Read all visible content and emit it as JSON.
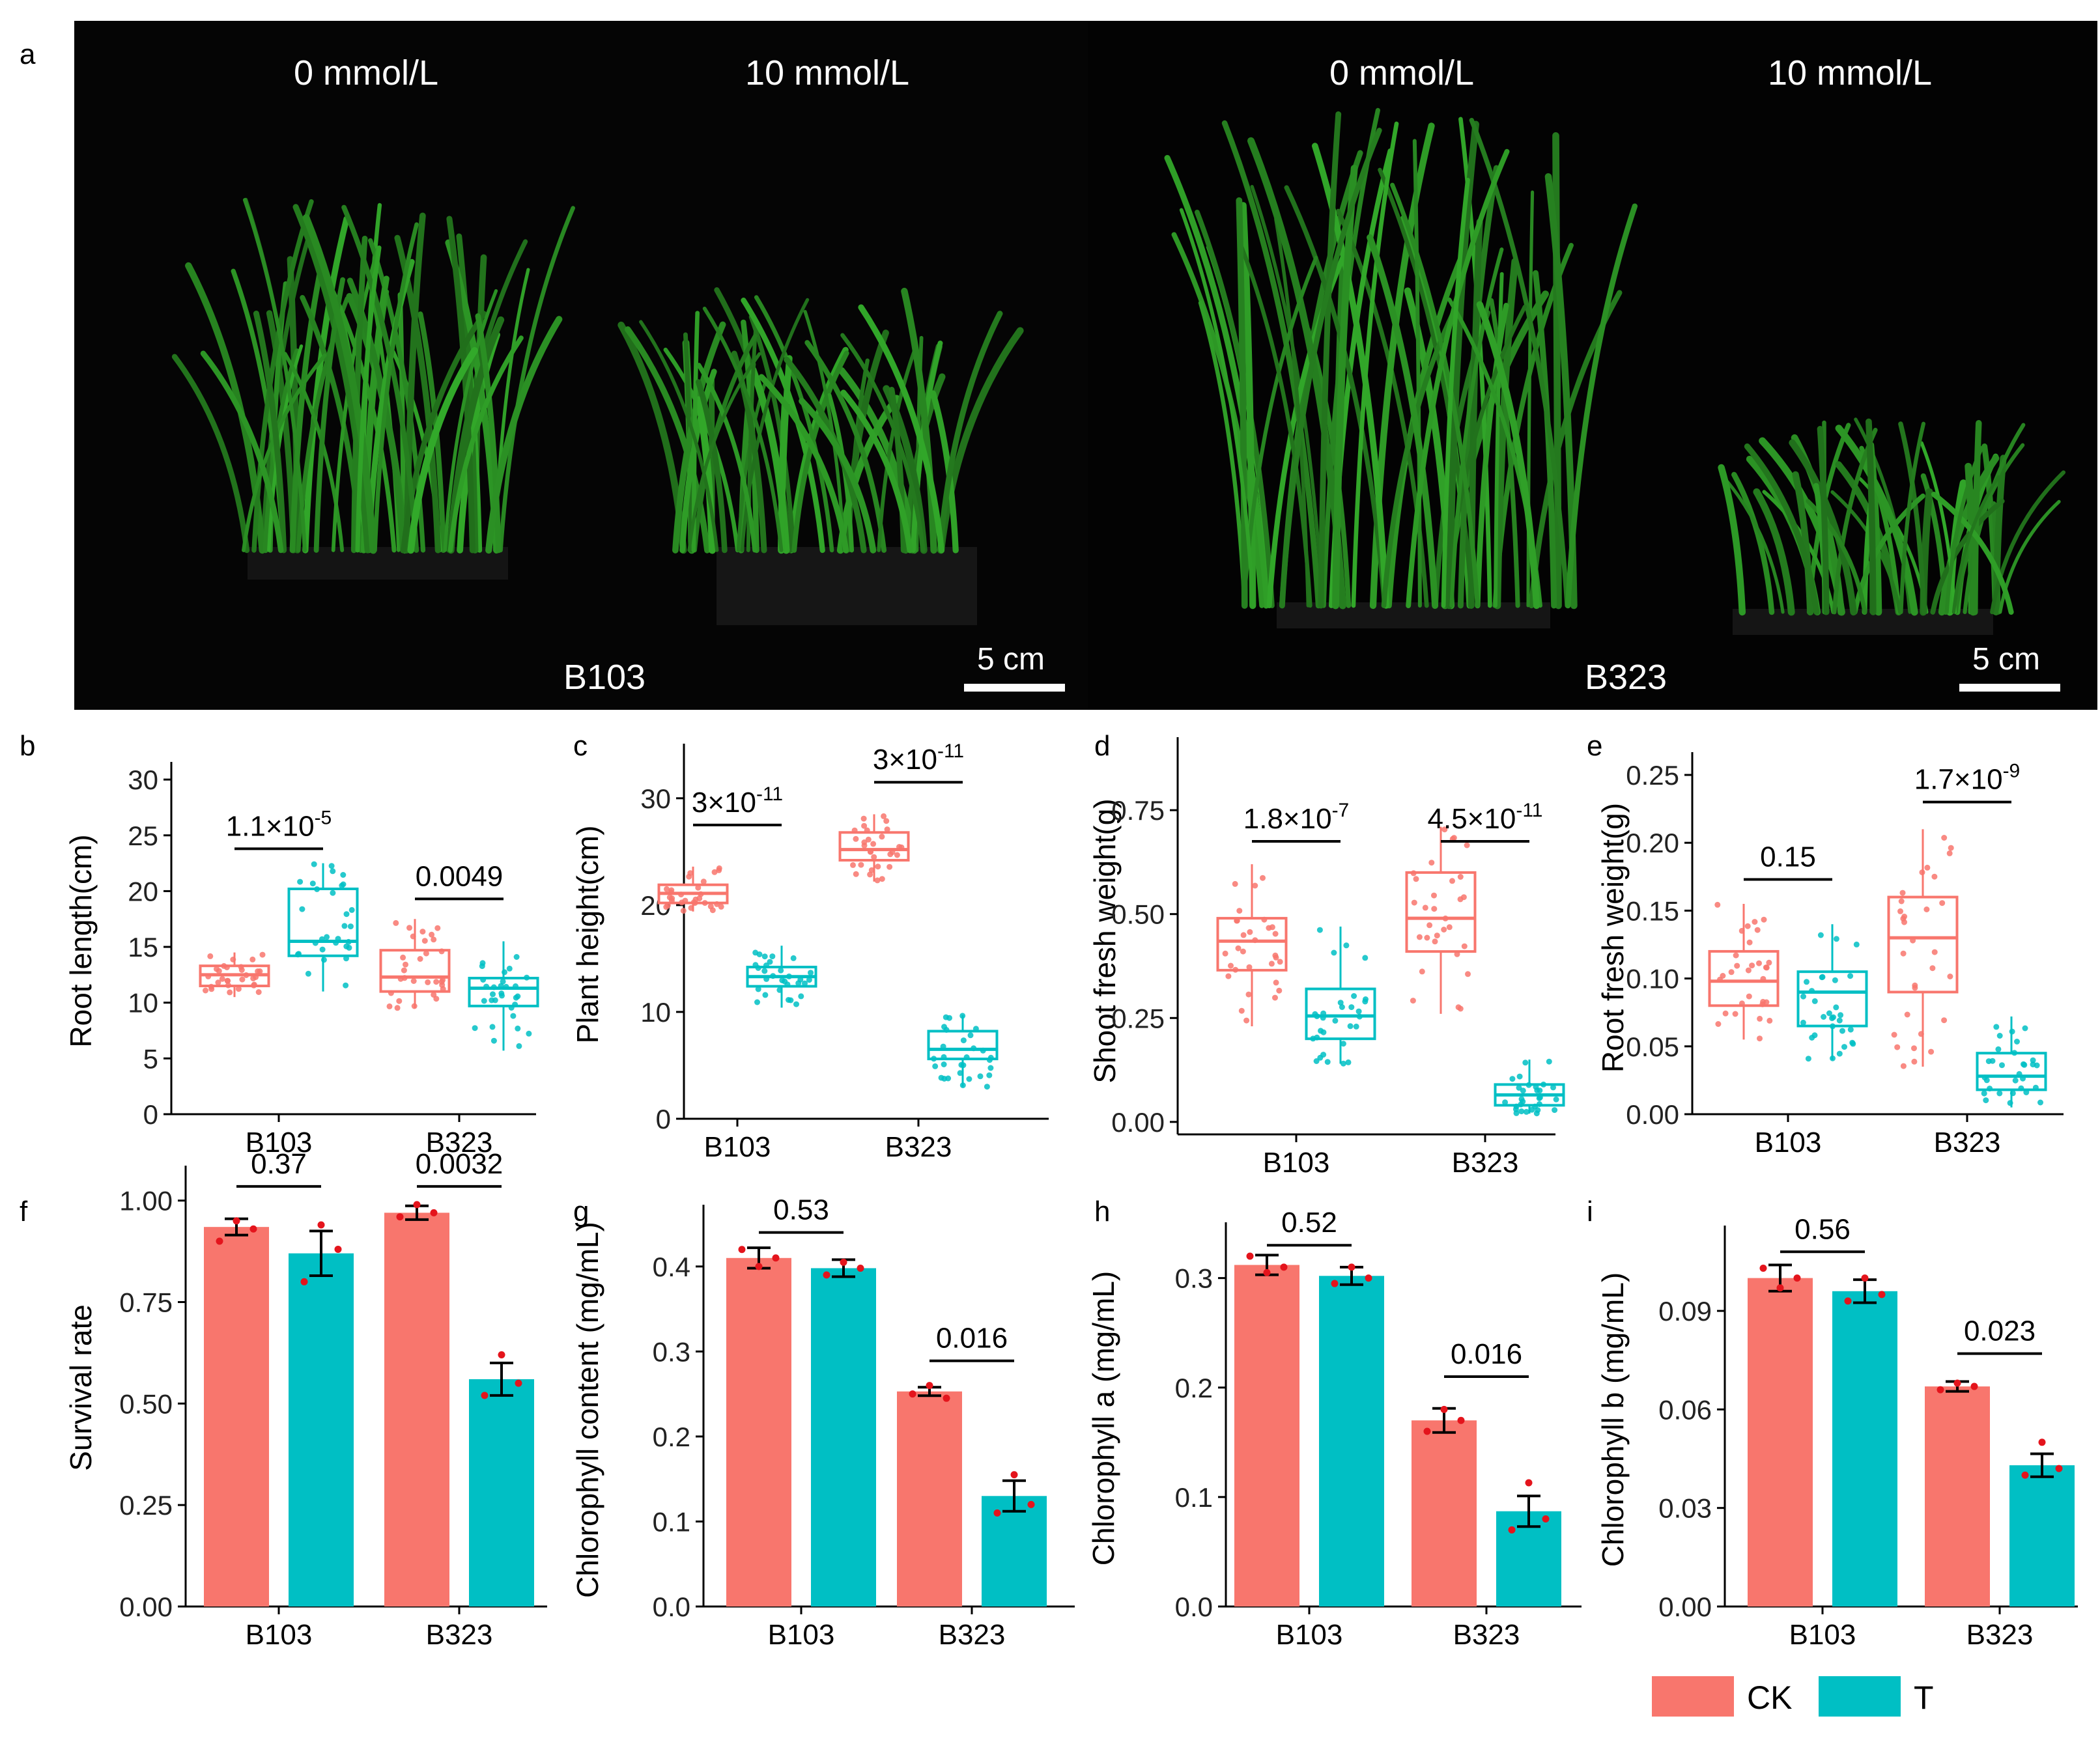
{
  "panel_a": {
    "letter": "a",
    "groups": [
      {
        "genotype": "B103",
        "conditions": [
          "0 mmol/L",
          "10 mmol/L"
        ],
        "scale_bar": "5 cm"
      },
      {
        "genotype": "B323",
        "conditions": [
          "0 mmol/L",
          "10 mmol/L"
        ],
        "scale_bar": "5 cm"
      }
    ]
  },
  "legend": {
    "entries": [
      {
        "label": "CK",
        "color": "#f8766d"
      },
      {
        "label": "T",
        "color": "#00bfc4"
      }
    ]
  },
  "colors": {
    "CK": "#f8766d",
    "T": "#00bfc4",
    "photo_bg": "#040404",
    "plant": "#2f8f2a",
    "point_bar": "#e4141c"
  },
  "chart_data": [
    {
      "id": "b",
      "letter": "b",
      "type": "box",
      "ylabel": "Root length(cm)",
      "ylim": [
        0,
        31
      ],
      "yticks": [
        0,
        5,
        10,
        15,
        20,
        25,
        30
      ],
      "ytick_labels": [
        "0",
        "5",
        "10",
        "15",
        "20",
        "25",
        "30"
      ],
      "categories": [
        "B103",
        "B323"
      ],
      "series": [
        {
          "name": "CK",
          "boxes": [
            {
              "q1": 11.5,
              "median": 12.5,
              "q3": 13.3,
              "whisker_low": 10.5,
              "whisker_high": 14.5
            },
            {
              "q1": 11,
              "median": 12.3,
              "q3": 14.7,
              "whisker_low": 9.5,
              "whisker_high": 17.5
            }
          ]
        },
        {
          "name": "T",
          "boxes": [
            {
              "q1": 14.2,
              "median": 15.5,
              "q3": 20.2,
              "whisker_low": 11,
              "whisker_high": 22.5
            },
            {
              "q1": 9.7,
              "median": 11.3,
              "q3": 12.2,
              "whisker_low": 5.7,
              "whisker_high": 15.5
            }
          ]
        }
      ],
      "p_values": [
        {
          "category": "B103",
          "base": "1.1×10",
          "exp": "-5",
          "y": 23.8
        },
        {
          "category": "B323",
          "base": "0.0049",
          "exp": "",
          "y": 19.3
        }
      ]
    },
    {
      "id": "c",
      "letter": "c",
      "type": "box",
      "ylabel": "Plant height(cm)",
      "ylim": [
        0,
        34.5
      ],
      "yticks": [
        0,
        10,
        20,
        30
      ],
      "ytick_labels": [
        "0",
        "10",
        "20",
        "30"
      ],
      "categories": [
        "B103",
        "B323"
      ],
      "series": [
        {
          "name": "CK",
          "boxes": [
            {
              "q1": 20.2,
              "median": 21.1,
              "q3": 21.9,
              "whisker_low": 19.4,
              "whisker_high": 23.6
            },
            {
              "q1": 24.2,
              "median": 25.2,
              "q3": 26.8,
              "whisker_low": 22.2,
              "whisker_high": 28.5
            }
          ]
        },
        {
          "name": "T",
          "boxes": [
            {
              "q1": 12.4,
              "median": 13.3,
              "q3": 14.2,
              "whisker_low": 10.4,
              "whisker_high": 16.2
            },
            {
              "q1": 5.6,
              "median": 6.5,
              "q3": 8.2,
              "whisker_low": 3,
              "whisker_high": 9.7
            }
          ]
        }
      ],
      "p_values": [
        {
          "category": "B103",
          "base": "3×10",
          "exp": "-11",
          "y": 27.5
        },
        {
          "category": "B323",
          "base": "3×10",
          "exp": "-11",
          "y": 31.5
        }
      ]
    },
    {
      "id": "d",
      "letter": "d",
      "type": "box",
      "ylabel": "Shoot fresh weight(g)",
      "ylim": [
        -0.03,
        0.91
      ],
      "yticks": [
        0,
        0.25,
        0.5,
        0.75
      ],
      "ytick_labels": [
        "0.00",
        "0.25",
        "0.50",
        "0.75"
      ],
      "categories": [
        "B103",
        "B323"
      ],
      "series": [
        {
          "name": "CK",
          "boxes": [
            {
              "q1": 0.365,
              "median": 0.435,
              "q3": 0.49,
              "whisker_low": 0.23,
              "whisker_high": 0.62
            },
            {
              "q1": 0.41,
              "median": 0.49,
              "q3": 0.6,
              "whisker_low": 0.26,
              "whisker_high": 0.71
            }
          ]
        },
        {
          "name": "T",
          "boxes": [
            {
              "q1": 0.2,
              "median": 0.255,
              "q3": 0.32,
              "whisker_low": 0.14,
              "whisker_high": 0.47
            },
            {
              "q1": 0.04,
              "median": 0.065,
              "q3": 0.09,
              "whisker_low": 0.02,
              "whisker_high": 0.15
            }
          ]
        }
      ],
      "p_values": [
        {
          "category": "B103",
          "base": "1.8×10",
          "exp": "-7",
          "y": 0.675
        },
        {
          "category": "B323",
          "base": "4.5×10",
          "exp": "-11",
          "y": 0.675
        }
      ]
    },
    {
      "id": "e",
      "letter": "e",
      "type": "box",
      "ylabel": "Root fresh weight(g)",
      "ylim": [
        0,
        0.262
      ],
      "yticks": [
        0,
        0.05,
        0.1,
        0.15,
        0.2,
        0.25
      ],
      "ytick_labels": [
        "0.00",
        "0.05",
        "0.10",
        "0.15",
        "0.20",
        "0.25"
      ],
      "categories": [
        "B103",
        "B323"
      ],
      "series": [
        {
          "name": "CK",
          "boxes": [
            {
              "q1": 0.08,
              "median": 0.098,
              "q3": 0.12,
              "whisker_low": 0.055,
              "whisker_high": 0.155
            },
            {
              "q1": 0.09,
              "median": 0.13,
              "q3": 0.16,
              "whisker_low": 0.035,
              "whisker_high": 0.21
            }
          ]
        },
        {
          "name": "T",
          "boxes": [
            {
              "q1": 0.065,
              "median": 0.09,
              "q3": 0.105,
              "whisker_low": 0.04,
              "whisker_high": 0.14
            },
            {
              "q1": 0.018,
              "median": 0.028,
              "q3": 0.045,
              "whisker_low": 0.005,
              "whisker_high": 0.072
            }
          ]
        }
      ],
      "p_values": [
        {
          "category": "B103",
          "base": "0.15",
          "exp": "",
          "y": 0.173
        },
        {
          "category": "B323",
          "base": "1.7×10",
          "exp": "-9",
          "y": 0.23
        }
      ]
    },
    {
      "id": "f",
      "letter": "f",
      "type": "bar",
      "ylabel": "Survival rate",
      "ylim": [
        0,
        1.07
      ],
      "yticks": [
        0,
        0.25,
        0.5,
        0.75,
        1.0
      ],
      "ytick_labels": [
        "0.00",
        "0.25",
        "0.50",
        "0.75",
        "1.00"
      ],
      "categories": [
        "B103",
        "B323"
      ],
      "series": [
        {
          "name": "CK",
          "values": [
            0.935,
            0.97
          ],
          "errors": [
            0.02,
            0.017
          ],
          "points": [
            [
              0.9,
              0.95,
              0.93
            ],
            [
              0.96,
              0.99,
              0.97
            ]
          ]
        },
        {
          "name": "T",
          "values": [
            0.87,
            0.56
          ],
          "errors": [
            0.055,
            0.04
          ],
          "points": [
            [
              0.8,
              0.94,
              0.88
            ],
            [
              0.52,
              0.62,
              0.55
            ]
          ]
        }
      ],
      "p_values": [
        {
          "category": "B103",
          "base": "0.37",
          "exp": "",
          "y": 1.035
        },
        {
          "category": "B323",
          "base": "0.0032",
          "exp": "",
          "y": 1.035
        }
      ]
    },
    {
      "id": "g",
      "letter": "g",
      "type": "bar",
      "ylabel": "Chlorophyll content (mg/mL)",
      "ylim": [
        0,
        0.465
      ],
      "yticks": [
        0,
        0.1,
        0.2,
        0.3,
        0.4
      ],
      "ytick_labels": [
        "0.0",
        "0.1",
        "0.2",
        "0.3",
        "0.4"
      ],
      "categories": [
        "B103",
        "B323"
      ],
      "series": [
        {
          "name": "CK",
          "values": [
            0.41,
            0.253
          ],
          "errors": [
            0.012,
            0.005
          ],
          "points": [
            [
              0.42,
              0.4,
              0.41
            ],
            [
              0.25,
              0.26,
              0.245
            ]
          ]
        },
        {
          "name": "T",
          "values": [
            0.398,
            0.13
          ],
          "errors": [
            0.01,
            0.018
          ],
          "points": [
            [
              0.39,
              0.405,
              0.398
            ],
            [
              0.11,
              0.155,
              0.12
            ]
          ]
        }
      ],
      "p_values": [
        {
          "category": "B103",
          "base": "0.53",
          "exp": "",
          "y": 0.44
        },
        {
          "category": "B323",
          "base": "0.016",
          "exp": "",
          "y": 0.289
        }
      ]
    },
    {
      "id": "h",
      "letter": "h",
      "type": "bar",
      "ylabel": "Chlorophyll a (mg/mL)",
      "ylim": [
        0,
        0.345
      ],
      "yticks": [
        0,
        0.1,
        0.2,
        0.3
      ],
      "ytick_labels": [
        "0.0",
        "0.1",
        "0.2",
        "0.3"
      ],
      "categories": [
        "B103",
        "B323"
      ],
      "series": [
        {
          "name": "CK",
          "values": [
            0.312,
            0.17
          ],
          "errors": [
            0.009,
            0.011
          ],
          "points": [
            [
              0.32,
              0.305,
              0.31
            ],
            [
              0.16,
              0.18,
              0.17
            ]
          ]
        },
        {
          "name": "T",
          "values": [
            0.302,
            0.087
          ],
          "errors": [
            0.008,
            0.014
          ],
          "points": [
            [
              0.295,
              0.31,
              0.3
            ],
            [
              0.07,
              0.113,
              0.08
            ]
          ]
        }
      ],
      "p_values": [
        {
          "category": "B103",
          "base": "0.52",
          "exp": "",
          "y": 0.33
        },
        {
          "category": "B323",
          "base": "0.016",
          "exp": "",
          "y": 0.21
        }
      ]
    },
    {
      "id": "i",
      "letter": "i",
      "type": "bar",
      "ylabel": "Chlorophyll b (mg/mL)",
      "ylim": [
        0,
        0.114
      ],
      "yticks": [
        0,
        0.03,
        0.06,
        0.09
      ],
      "ytick_labels": [
        "0.00",
        "0.03",
        "0.06",
        "0.09"
      ],
      "categories": [
        "B103",
        "B323"
      ],
      "series": [
        {
          "name": "CK",
          "values": [
            0.1,
            0.067
          ],
          "errors": [
            0.004,
            0.0015
          ],
          "points": [
            [
              0.103,
              0.097,
              0.1
            ],
            [
              0.066,
              0.068,
              0.067
            ]
          ]
        },
        {
          "name": "T",
          "values": [
            0.096,
            0.043
          ],
          "errors": [
            0.0035,
            0.0035
          ],
          "points": [
            [
              0.093,
              0.1,
              0.095
            ],
            [
              0.04,
              0.05,
              0.042
            ]
          ]
        }
      ],
      "p_values": [
        {
          "category": "B103",
          "base": "0.56",
          "exp": "",
          "y": 0.108
        },
        {
          "category": "B323",
          "base": "0.023",
          "exp": "",
          "y": 0.077
        }
      ]
    }
  ]
}
